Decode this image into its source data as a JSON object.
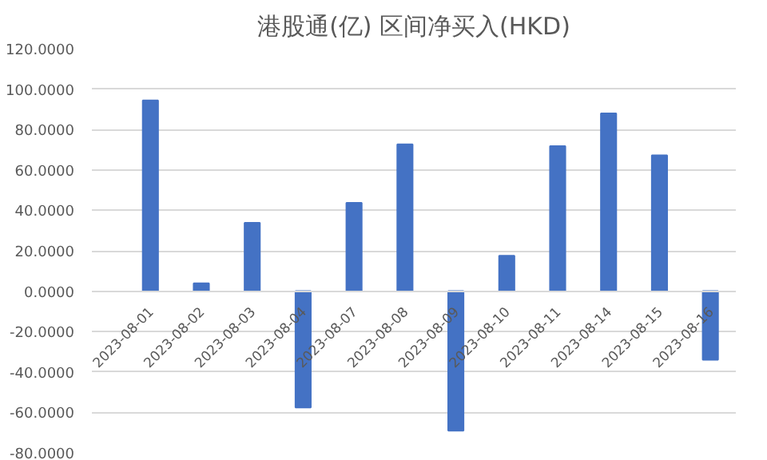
{
  "chart_data": {
    "type": "bar",
    "title": "港股通(亿) 区间净买入(HKD)",
    "categories": [
      "2023-08-01",
      "2023-08-02",
      "2023-08-03",
      "2023-08-04",
      "2023-08-07",
      "2023-08-08",
      "2023-08-09",
      "2023-08-10",
      "2023-08-11",
      "2023-08-14",
      "2023-08-15",
      "2023-08-16"
    ],
    "values": [
      94.4,
      3.9,
      33.8,
      -57.6,
      43.7,
      72.7,
      -69,
      17.5,
      71.8,
      88,
      67.2,
      -34
    ],
    "color": "#4472c4",
    "ylim": [
      -80,
      120
    ],
    "yticks": [
      {
        "value": -80,
        "label": "-80.0000"
      },
      {
        "value": -60,
        "label": "-60.0000"
      },
      {
        "value": -40,
        "label": "-40.0000"
      },
      {
        "value": -20,
        "label": "-20.0000"
      },
      {
        "value": 0,
        "label": "0.0000"
      },
      {
        "value": 20,
        "label": "20.0000"
      },
      {
        "value": 40,
        "label": "40.0000"
      },
      {
        "value": 60,
        "label": "60.0000"
      },
      {
        "value": 80,
        "label": "80.0000"
      },
      {
        "value": 100,
        "label": "100.0000"
      },
      {
        "value": 120,
        "label": "120.0000"
      }
    ],
    "grid": "y"
  }
}
